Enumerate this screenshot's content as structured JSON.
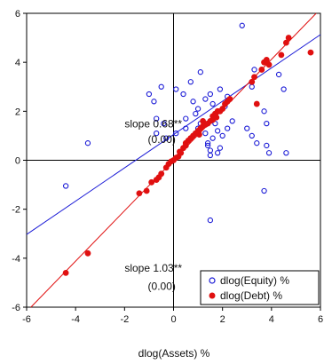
{
  "chart_data": {
    "type": "scatter",
    "xlabel": "dlog(Assets) %",
    "ylabel": "",
    "xlim": [
      -6,
      6
    ],
    "ylim": [
      -6,
      6
    ],
    "xticks": [
      -6,
      -4,
      -2,
      0,
      2,
      4,
      6
    ],
    "yticks": [
      -6,
      -4,
      -2,
      0,
      2,
      4,
      6
    ],
    "legend_position": "bottom-right",
    "colors": {
      "equity": "#1a1ad6",
      "debt": "#e01010",
      "axis": "#000000"
    },
    "series": [
      {
        "name": "dlog(Equity) %",
        "marker": "open-circle",
        "color": "#1a1ad6",
        "fit_line": {
          "slope": 0.68,
          "intercept": 1.05
        },
        "points": [
          [
            2.8,
            5.5
          ],
          [
            -4.4,
            -1.05
          ],
          [
            -3.5,
            0.7
          ],
          [
            -1.0,
            2.7
          ],
          [
            -0.8,
            2.4
          ],
          [
            -0.5,
            3.0
          ],
          [
            -0.7,
            1.7
          ],
          [
            -0.7,
            1.1
          ],
          [
            -0.4,
            1.5
          ],
          [
            -0.3,
            0.9
          ],
          [
            0.1,
            1.1
          ],
          [
            0.1,
            2.9
          ],
          [
            0.4,
            2.7
          ],
          [
            0.5,
            1.3
          ],
          [
            0.5,
            1.7
          ],
          [
            0.6,
            0.8
          ],
          [
            0.7,
            3.2
          ],
          [
            0.8,
            2.4
          ],
          [
            0.9,
            1.9
          ],
          [
            1.0,
            2.1
          ],
          [
            1.1,
            3.6
          ],
          [
            1.1,
            1.5
          ],
          [
            1.2,
            1.6
          ],
          [
            1.3,
            2.5
          ],
          [
            1.3,
            1.1
          ],
          [
            1.4,
            0.7
          ],
          [
            1.4,
            0.6
          ],
          [
            1.5,
            0.4
          ],
          [
            1.5,
            2.7
          ],
          [
            1.6,
            2.3
          ],
          [
            1.6,
            0.9
          ],
          [
            1.7,
            1.5
          ],
          [
            1.8,
            1.2
          ],
          [
            1.8,
            0.3
          ],
          [
            1.9,
            0.5
          ],
          [
            1.9,
            2.9
          ],
          [
            2.0,
            1.0
          ],
          [
            2.1,
            2.2
          ],
          [
            2.2,
            1.3
          ],
          [
            2.4,
            1.6
          ],
          [
            3.0,
            1.3
          ],
          [
            3.2,
            1.0
          ],
          [
            3.2,
            3.0
          ],
          [
            3.3,
            3.7
          ],
          [
            3.4,
            0.7
          ],
          [
            3.7,
            2.0
          ],
          [
            3.8,
            1.5
          ],
          [
            3.8,
            0.6
          ],
          [
            3.9,
            0.3
          ],
          [
            4.3,
            3.5
          ],
          [
            4.5,
            2.9
          ],
          [
            4.6,
            0.3
          ],
          [
            3.7,
            -1.25
          ],
          [
            1.5,
            -2.45
          ],
          [
            1.5,
            0.2
          ],
          [
            2.2,
            2.6
          ],
          [
            1.0,
            1.3
          ],
          [
            3.6,
            3.7
          ]
        ]
      },
      {
        "name": "dlog(Debt) %",
        "marker": "filled-circle",
        "color": "#e01010",
        "fit_line": {
          "slope": 1.03,
          "intercept": 0.0
        },
        "points": [
          [
            -4.4,
            -4.6
          ],
          [
            -3.5,
            -3.8
          ],
          [
            -1.4,
            -1.35
          ],
          [
            -1.1,
            -1.25
          ],
          [
            -0.9,
            -0.9
          ],
          [
            -0.7,
            -0.8
          ],
          [
            -0.6,
            -0.7
          ],
          [
            -0.5,
            -0.55
          ],
          [
            -0.3,
            -0.3
          ],
          [
            -0.2,
            -0.15
          ],
          [
            -0.1,
            -0.05
          ],
          [
            0.0,
            0.0
          ],
          [
            0.1,
            0.1
          ],
          [
            0.2,
            0.15
          ],
          [
            0.3,
            0.3
          ],
          [
            0.4,
            0.5
          ],
          [
            0.5,
            0.6
          ],
          [
            0.6,
            0.8
          ],
          [
            0.7,
            0.9
          ],
          [
            0.8,
            1.0
          ],
          [
            0.9,
            1.1
          ],
          [
            1.0,
            1.2
          ],
          [
            1.1,
            1.3
          ],
          [
            1.2,
            1.4
          ],
          [
            1.3,
            1.45
          ],
          [
            1.4,
            1.5
          ],
          [
            1.5,
            1.6
          ],
          [
            1.6,
            1.8
          ],
          [
            1.7,
            1.9
          ],
          [
            1.8,
            2.0
          ],
          [
            1.9,
            2.0
          ],
          [
            2.0,
            2.1
          ],
          [
            2.1,
            2.3
          ],
          [
            2.3,
            2.5
          ],
          [
            3.2,
            3.2
          ],
          [
            3.3,
            3.4
          ],
          [
            3.4,
            2.3
          ],
          [
            3.6,
            3.7
          ],
          [
            3.7,
            4.0
          ],
          [
            3.8,
            4.1
          ],
          [
            3.9,
            3.9
          ],
          [
            4.4,
            4.3
          ],
          [
            4.6,
            4.8
          ],
          [
            4.7,
            5.0
          ],
          [
            5.6,
            4.4
          ],
          [
            0.5,
            0.7
          ],
          [
            1.2,
            1.6
          ],
          [
            2.2,
            2.4
          ],
          [
            1.6,
            1.65
          ],
          [
            0.25,
            0.35
          ],
          [
            1.05,
            1.05
          ],
          [
            1.75,
            1.75
          ]
        ]
      }
    ],
    "annotations": [
      {
        "text": "slope 0.68**",
        "x": -2.0,
        "y": 1.35
      },
      {
        "text": "(0.00)",
        "x": -1.05,
        "y": 0.7
      },
      {
        "text": "slope 1.03**",
        "x": -2.0,
        "y": -4.55
      },
      {
        "text": "(0.00)",
        "x": -1.05,
        "y": -5.3
      }
    ]
  }
}
